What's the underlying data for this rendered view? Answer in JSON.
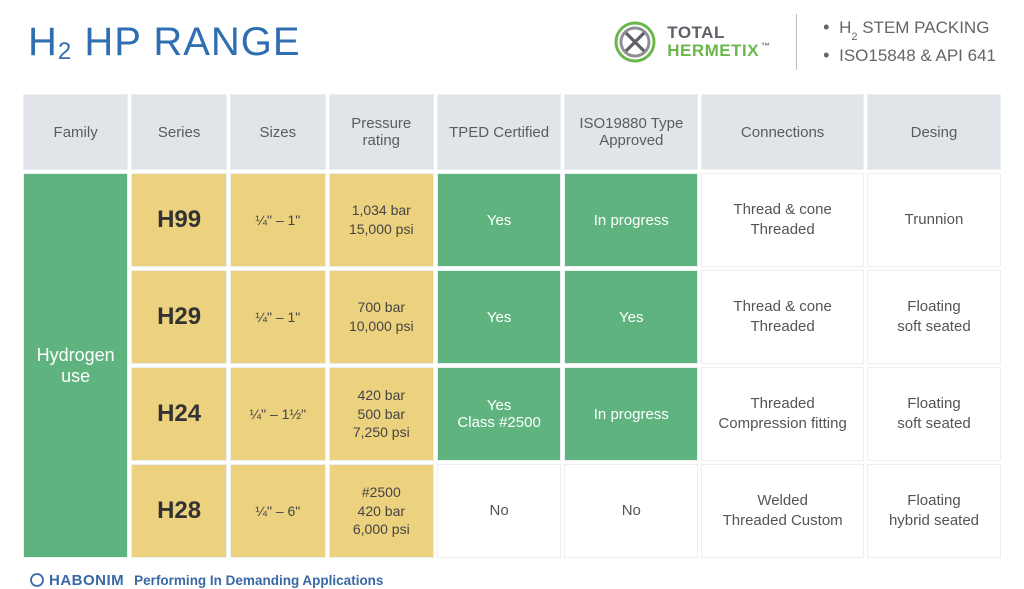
{
  "header": {
    "title_prefix": "H",
    "title_sub": "2",
    "title_rest": " HP RANGE",
    "logo_top": "TOTAL",
    "logo_bottom": "HERMETIX",
    "tm": "™",
    "bullet1_pre": "H",
    "bullet1_sub": "2",
    "bullet1_rest": " STEM PACKING",
    "bullet2": "ISO15848 & API 641"
  },
  "table": {
    "columns": [
      "Family",
      "Series",
      "Sizes",
      "Pressure rating",
      "TPED Certified",
      "ISO19880 Type Approved",
      "Connections",
      "Desing"
    ],
    "family_label": "Hydrogen use",
    "rows": [
      {
        "series": "H99",
        "sizes": "¼\" – 1\"",
        "pressure": "1,034 bar\n15,000 psi",
        "tped": "Yes",
        "tped_green": true,
        "iso": "In progress",
        "iso_green": true,
        "connections": "Thread & cone\nThreaded",
        "design": "Trunnion"
      },
      {
        "series": "H29",
        "sizes": "¼\" – 1\"",
        "pressure": "700 bar\n10,000 psi",
        "tped": "Yes",
        "tped_green": true,
        "iso": "Yes",
        "iso_green": true,
        "connections": "Thread & cone\nThreaded",
        "design": "Floating\nsoft seated"
      },
      {
        "series": "H24",
        "sizes": "¼\" – 1½\"",
        "pressure": "420 bar\n500 bar\n7,250 psi",
        "tped": "Yes\nClass #2500",
        "tped_green": true,
        "iso": "In progress",
        "iso_green": true,
        "connections": "Threaded\nCompression fitting",
        "design": "Floating\nsoft seated"
      },
      {
        "series": "H28",
        "sizes": "¼\" – 6\"",
        "pressure": "#2500\n420 bar\n6,000 psi",
        "tped": "No",
        "tped_green": false,
        "iso": "No",
        "iso_green": false,
        "connections": "Welded\nThreaded Custom",
        "design": "Floating\nhybrid seated"
      }
    ]
  },
  "footer": {
    "brand": "HABONIM",
    "tagline": "Performing In Demanding Applications"
  },
  "colors": {
    "title": "#2f6fb1",
    "header_bg": "#e1e4e8",
    "green": "#5fb37e",
    "amber": "#ecd27f",
    "text": "#4b4e54",
    "footer": "#3968a6",
    "logo_green": "#6cb74b",
    "logo_gray": "#5d6066"
  }
}
